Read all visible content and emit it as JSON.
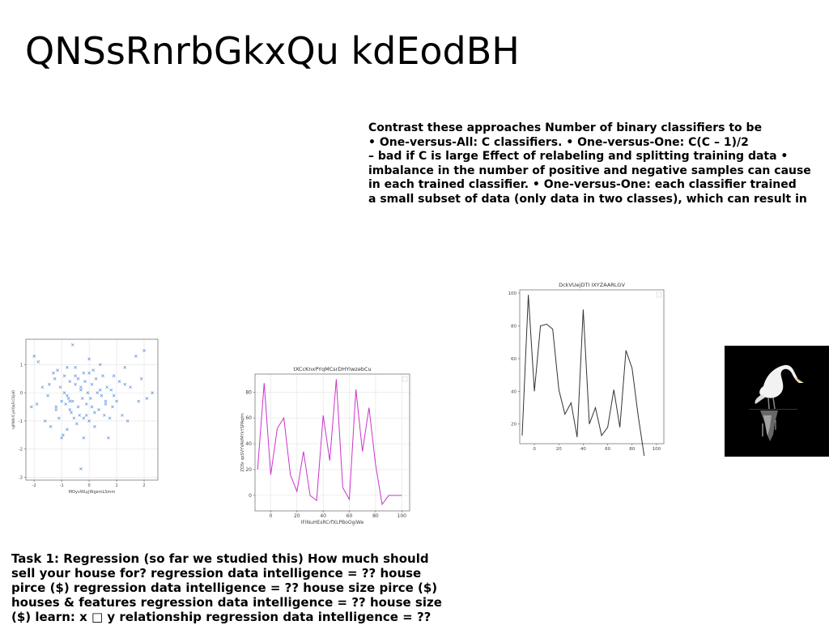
{
  "slide": {
    "title": "QNSsRnrbGkxQu kdEodBH",
    "paragraph_top": [
      "Contrast these approaches Number of binary classifiers to be",
      "• One-versus-All: C classifiers. • One-versus-One: C(C – 1)/2",
      "– bad if C is large Effect of relabeling and splitting training data •",
      "imbalance in the number of positive and negative samples can cause",
      "in each trained classifier. • One-versus-One: each classifier trained",
      "a small subset of data (only data in two classes), which can result in"
    ],
    "paragraph_bottom": [
      "Task 1: Regression (so far we studied this) How much should",
      "sell your house for? regression data intelligence = ?? house",
      "pirce ($) regression data intelligence = ?? house size pirce ($)",
      "houses & features regression data intelligence = ?? house size",
      "($) learn: x □ y relationship regression data intelligence = ??"
    ]
  },
  "chart_data": [
    {
      "type": "scatter",
      "title": "",
      "xlabel": "MOyvWLyjWgemLSmm",
      "ylabel": "rqMWLfCyHQqFcCKjeD",
      "xlim": [
        -2.3,
        2.5
      ],
      "ylim": [
        -3.1,
        1.9
      ],
      "xticks": [
        "-2",
        "-1",
        "0",
        "1",
        "2"
      ],
      "yticks": [
        "-3",
        "-2",
        "-1",
        "0",
        "1"
      ],
      "color": "#5b8fd6",
      "marker": "x",
      "grid": true,
      "x": [
        -2.1,
        -2.0,
        -1.9,
        -1.85,
        -1.7,
        -1.6,
        -1.5,
        -1.45,
        -1.4,
        -1.3,
        -1.25,
        -1.2,
        -1.15,
        -1.1,
        -1.05,
        -1.0,
        -0.95,
        -0.9,
        -0.9,
        -0.85,
        -0.8,
        -0.8,
        -0.75,
        -0.7,
        -0.7,
        -0.65,
        -0.6,
        -0.6,
        -0.55,
        -0.5,
        -0.5,
        -0.45,
        -0.4,
        -0.4,
        -0.35,
        -0.3,
        -0.3,
        -0.25,
        -0.2,
        -0.2,
        -0.15,
        -0.1,
        -0.1,
        -0.05,
        0.0,
        0.0,
        0.05,
        0.1,
        0.1,
        0.15,
        0.2,
        0.25,
        0.3,
        0.35,
        0.4,
        0.45,
        0.5,
        0.55,
        0.6,
        0.65,
        0.7,
        0.75,
        0.8,
        0.85,
        0.9,
        1.0,
        1.1,
        1.2,
        1.3,
        1.4,
        1.5,
        1.7,
        1.8,
        1.9,
        2.0,
        2.1,
        2.3,
        -0.7,
        -0.3,
        0.2,
        0.6,
        -1.0,
        -0.5,
        0.9,
        -1.2,
        0.4,
        -0.2,
        1.3,
        -0.8,
        0.0
      ],
      "y": [
        -0.5,
        1.3,
        -0.4,
        1.1,
        0.2,
        -1.0,
        -0.1,
        0.3,
        -1.2,
        0.7,
        0.5,
        -0.5,
        0.8,
        -0.9,
        0.2,
        -1.6,
        -1.5,
        0.6,
        0.0,
        -0.4,
        0.9,
        -1.3,
        -0.2,
        0.4,
        -0.6,
        -0.7,
        1.7,
        -0.3,
        -0.9,
        0.3,
        0.9,
        -1.1,
        -0.5,
        0.5,
        -0.8,
        -2.7,
        0.1,
        -0.2,
        0.7,
        -1.6,
        0.4,
        -0.4,
        -0.8,
        0.0,
        1.2,
        -1.0,
        -0.2,
        0.3,
        -0.5,
        0.8,
        -1.2,
        0.5,
        0.0,
        -0.6,
        1.0,
        -0.1,
        0.6,
        -0.8,
        -0.3,
        0.2,
        -1.6,
        -0.9,
        0.1,
        -0.5,
        0.6,
        -0.3,
        0.4,
        -0.8,
        0.9,
        -1.0,
        0.2,
        1.3,
        -0.3,
        0.5,
        1.5,
        -0.2,
        0.0,
        -0.3,
        0.2,
        -0.7,
        -0.4,
        -0.3,
        0.6,
        -0.1,
        -0.6,
        0.1,
        -0.9,
        0.3,
        -0.1,
        0.7
      ]
    },
    {
      "type": "line",
      "title": "tXCcKnxPYqMCsrDHYIwzebCu",
      "xlabel": "IFINuHEsRCrfXLPBoOgiWe",
      "ylabel": "ZOSr qsSVYVAVMYkYSPAqIm",
      "xlim": [
        -12,
        106
      ],
      "ylim": [
        -12,
        94
      ],
      "xticks": [
        "0",
        "20",
        "40",
        "60",
        "80",
        "100"
      ],
      "yticks": [
        "0",
        "20",
        "40",
        "60",
        "80"
      ],
      "color": "#cc33cc",
      "grid": true,
      "x": [
        -10,
        -5,
        0,
        5,
        10,
        15,
        20,
        25,
        30,
        35,
        40,
        45,
        50,
        55,
        60,
        65,
        70,
        75,
        80,
        85,
        90,
        95,
        100
      ],
      "y": [
        20,
        87,
        16,
        52,
        60,
        16,
        3,
        34,
        0,
        -4,
        62,
        27,
        90,
        6,
        -3,
        82,
        34,
        68,
        24,
        -7,
        0,
        0,
        0
      ]
    },
    {
      "type": "line",
      "title": "DckVUejDTI IXYZAARLGV",
      "xlabel": "",
      "ylabel": "",
      "xlim": [
        -12,
        106
      ],
      "ylim": [
        8,
        102
      ],
      "xticks": [
        "0",
        "20",
        "40",
        "60",
        "80",
        "100"
      ],
      "yticks": [
        "20",
        "40",
        "60",
        "80",
        "100"
      ],
      "color": "#333333",
      "grid": false,
      "x": [
        -10,
        -5,
        0,
        5,
        10,
        15,
        20,
        25,
        30,
        35,
        40,
        45,
        50,
        55,
        60,
        65,
        70,
        75,
        80,
        85,
        90,
        95,
        100
      ],
      "y": [
        13,
        99,
        40,
        80,
        81,
        78,
        41,
        26,
        33,
        12,
        90,
        20,
        30,
        13,
        18,
        41,
        18,
        65,
        54,
        25,
        0,
        0,
        0
      ]
    }
  ]
}
